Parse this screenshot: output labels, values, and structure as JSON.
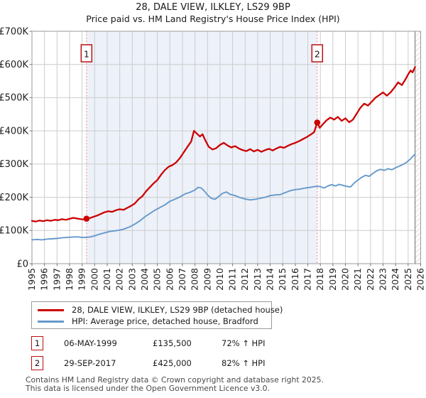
{
  "title": "28, DALE VIEW, ILKLEY, LS29 9BP",
  "subtitle": "Price paid vs. HM Land Registry's House Price Index (HPI)",
  "legend": [
    {
      "label": "28, DALE VIEW, ILKLEY, LS29 9BP (detached house)"
    },
    {
      "label": "HPI: Average price, detached house, Bradford"
    }
  ],
  "annotations": [
    {
      "num": "1",
      "date": "06-MAY-1999",
      "price": "£135,500",
      "hpi_change": "72% ↑ HPI"
    },
    {
      "num": "2",
      "date": "29-SEP-2017",
      "price": "£425,000",
      "hpi_change": "82% ↑ HPI"
    }
  ],
  "footer": {
    "line1": "Contains HM Land Registry data © Crown copyright and database right 2025.",
    "line2": "This data is licensed under the Open Government Licence v3.0."
  },
  "chart_data": {
    "type": "line",
    "title": "28, DALE VIEW, ILKLEY, LS29 9BP — Price paid vs. HPI",
    "grid": true,
    "legend_position": "bottom-left",
    "x_axis": {
      "min": 1995,
      "max": 2026,
      "ticks": [
        1995,
        1996,
        1997,
        1998,
        1999,
        2000,
        2001,
        2002,
        2003,
        2004,
        2005,
        2006,
        2007,
        2008,
        2009,
        2010,
        2011,
        2012,
        2013,
        2014,
        2015,
        2016,
        2017,
        2018,
        2019,
        2020,
        2021,
        2022,
        2023,
        2024,
        2025,
        2026
      ]
    },
    "y_axis": {
      "min": 0,
      "max": 700,
      "tick_step": 100,
      "tick_labels": [
        "£0",
        "£100K",
        "£200K",
        "£300K",
        "£400K",
        "£500K",
        "£600K",
        "£700K"
      ],
      "unit": "GBP (thousands)"
    },
    "colors": {
      "grid": "#cccccc",
      "border": "#9a9a9a",
      "shade": "#edf1f9",
      "dashed": "#f08080",
      "hatch": "#bbbbbb",
      "sale_marker": "#cc0000",
      "flag_border": "#bb1111"
    },
    "shaded_region": {
      "from": 1999.35,
      "to": 2017.75
    },
    "future_hatch_from": 2025.55,
    "sales": [
      {
        "label": "1",
        "date": "06-MAY-1999",
        "year": 1999.35,
        "price_k": 135.5,
        "vs_hpi": "72% ↑ HPI"
      },
      {
        "label": "2",
        "date": "29-SEP-2017",
        "year": 2017.75,
        "price_k": 425,
        "vs_hpi": "82% ↑ HPI"
      }
    ],
    "series": [
      {
        "name": "28, DALE VIEW, ILKLEY, LS29 9BP (detached house)",
        "data_name": "series-property-price-line",
        "color": "#cc0000",
        "width": 2.3,
        "points": [
          [
            1995.0,
            129
          ],
          [
            1995.3,
            127
          ],
          [
            1995.6,
            130
          ],
          [
            1995.9,
            128
          ],
          [
            1996.2,
            131
          ],
          [
            1996.5,
            129
          ],
          [
            1996.8,
            132
          ],
          [
            1997.1,
            131
          ],
          [
            1997.4,
            134
          ],
          [
            1997.7,
            132
          ],
          [
            1998.0,
            135
          ],
          [
            1998.3,
            138
          ],
          [
            1998.6,
            136
          ],
          [
            1998.9,
            134
          ],
          [
            1999.15,
            133
          ],
          [
            1999.35,
            135.5
          ],
          [
            1999.6,
            137
          ],
          [
            1999.9,
            141
          ],
          [
            2000.2,
            145
          ],
          [
            2000.5,
            150
          ],
          [
            2000.8,
            155
          ],
          [
            2001.1,
            158
          ],
          [
            2001.4,
            156
          ],
          [
            2001.7,
            161
          ],
          [
            2002.0,
            164
          ],
          [
            2002.3,
            162
          ],
          [
            2002.6,
            168
          ],
          [
            2002.9,
            174
          ],
          [
            2003.2,
            181
          ],
          [
            2003.5,
            194
          ],
          [
            2003.8,
            203
          ],
          [
            2004.1,
            218
          ],
          [
            2004.4,
            230
          ],
          [
            2004.7,
            242
          ],
          [
            2005.0,
            252
          ],
          [
            2005.3,
            268
          ],
          [
            2005.6,
            282
          ],
          [
            2005.9,
            292
          ],
          [
            2006.2,
            297
          ],
          [
            2006.5,
            305
          ],
          [
            2006.8,
            318
          ],
          [
            2007.1,
            335
          ],
          [
            2007.4,
            352
          ],
          [
            2007.7,
            368
          ],
          [
            2007.92,
            400
          ],
          [
            2008.15,
            392
          ],
          [
            2008.4,
            383
          ],
          [
            2008.6,
            390
          ],
          [
            2008.85,
            370
          ],
          [
            2009.1,
            352
          ],
          [
            2009.4,
            344
          ],
          [
            2009.7,
            348
          ],
          [
            2010.0,
            358
          ],
          [
            2010.3,
            364
          ],
          [
            2010.6,
            356
          ],
          [
            2010.9,
            350
          ],
          [
            2011.2,
            354
          ],
          [
            2011.5,
            347
          ],
          [
            2011.8,
            342
          ],
          [
            2012.1,
            339
          ],
          [
            2012.4,
            345
          ],
          [
            2012.7,
            338
          ],
          [
            2013.0,
            343
          ],
          [
            2013.3,
            337
          ],
          [
            2013.6,
            342
          ],
          [
            2013.9,
            346
          ],
          [
            2014.2,
            341
          ],
          [
            2014.5,
            347
          ],
          [
            2014.8,
            352
          ],
          [
            2015.1,
            349
          ],
          [
            2015.4,
            355
          ],
          [
            2015.7,
            360
          ],
          [
            2016.0,
            364
          ],
          [
            2016.3,
            369
          ],
          [
            2016.6,
            375
          ],
          [
            2016.9,
            381
          ],
          [
            2017.2,
            388
          ],
          [
            2017.5,
            396
          ],
          [
            2017.75,
            425
          ],
          [
            2017.95,
            409
          ],
          [
            2018.2,
            420
          ],
          [
            2018.5,
            432
          ],
          [
            2018.8,
            440
          ],
          [
            2019.1,
            434
          ],
          [
            2019.4,
            442
          ],
          [
            2019.7,
            430
          ],
          [
            2020.0,
            438
          ],
          [
            2020.3,
            426
          ],
          [
            2020.6,
            434
          ],
          [
            2020.9,
            452
          ],
          [
            2021.2,
            470
          ],
          [
            2021.5,
            482
          ],
          [
            2021.8,
            476
          ],
          [
            2022.1,
            488
          ],
          [
            2022.4,
            500
          ],
          [
            2022.7,
            508
          ],
          [
            2023.0,
            516
          ],
          [
            2023.3,
            506
          ],
          [
            2023.6,
            516
          ],
          [
            2023.9,
            530
          ],
          [
            2024.2,
            546
          ],
          [
            2024.5,
            538
          ],
          [
            2024.8,
            556
          ],
          [
            2025.0,
            570
          ],
          [
            2025.2,
            582
          ],
          [
            2025.35,
            576
          ],
          [
            2025.55,
            592
          ]
        ]
      },
      {
        "name": "HPI: Average price, detached house, Bradford",
        "data_name": "series-hpi-line",
        "color": "#6699cc",
        "width": 1.9,
        "points": [
          [
            1995.0,
            72
          ],
          [
            1995.4,
            73
          ],
          [
            1995.8,
            72
          ],
          [
            1996.2,
            74
          ],
          [
            1996.6,
            75
          ],
          [
            1997.0,
            76
          ],
          [
            1997.4,
            78
          ],
          [
            1997.8,
            79
          ],
          [
            1998.2,
            80
          ],
          [
            1998.6,
            81
          ],
          [
            1999.0,
            79
          ],
          [
            1999.35,
            79
          ],
          [
            1999.7,
            81
          ],
          [
            2000.0,
            84
          ],
          [
            2000.4,
            89
          ],
          [
            2000.8,
            93
          ],
          [
            2001.2,
            97
          ],
          [
            2001.6,
            99
          ],
          [
            2002.0,
            101
          ],
          [
            2002.4,
            105
          ],
          [
            2002.8,
            111
          ],
          [
            2003.2,
            119
          ],
          [
            2003.6,
            129
          ],
          [
            2004.0,
            141
          ],
          [
            2004.4,
            151
          ],
          [
            2004.8,
            161
          ],
          [
            2005.2,
            169
          ],
          [
            2005.6,
            177
          ],
          [
            2006.0,
            188
          ],
          [
            2006.4,
            194
          ],
          [
            2006.8,
            201
          ],
          [
            2007.2,
            210
          ],
          [
            2007.6,
            215
          ],
          [
            2008.0,
            222
          ],
          [
            2008.25,
            230
          ],
          [
            2008.5,
            228
          ],
          [
            2008.75,
            219
          ],
          [
            2009.0,
            207
          ],
          [
            2009.3,
            197
          ],
          [
            2009.6,
            194
          ],
          [
            2009.9,
            203
          ],
          [
            2010.2,
            212
          ],
          [
            2010.5,
            216
          ],
          [
            2010.8,
            209
          ],
          [
            2011.2,
            205
          ],
          [
            2011.6,
            199
          ],
          [
            2012.0,
            195
          ],
          [
            2012.4,
            192
          ],
          [
            2012.8,
            194
          ],
          [
            2013.2,
            197
          ],
          [
            2013.6,
            200
          ],
          [
            2014.0,
            205
          ],
          [
            2014.4,
            207
          ],
          [
            2014.8,
            208
          ],
          [
            2015.2,
            214
          ],
          [
            2015.6,
            220
          ],
          [
            2016.0,
            223
          ],
          [
            2016.4,
            225
          ],
          [
            2016.8,
            228
          ],
          [
            2017.2,
            230
          ],
          [
            2017.5,
            232
          ],
          [
            2017.75,
            233
          ],
          [
            2018.0,
            232
          ],
          [
            2018.3,
            228
          ],
          [
            2018.6,
            234
          ],
          [
            2018.9,
            238
          ],
          [
            2019.2,
            234
          ],
          [
            2019.5,
            239
          ],
          [
            2019.8,
            236
          ],
          [
            2020.1,
            233
          ],
          [
            2020.4,
            231
          ],
          [
            2020.7,
            243
          ],
          [
            2021.0,
            252
          ],
          [
            2021.3,
            260
          ],
          [
            2021.6,
            266
          ],
          [
            2021.9,
            263
          ],
          [
            2022.2,
            272
          ],
          [
            2022.5,
            280
          ],
          [
            2022.8,
            284
          ],
          [
            2023.1,
            281
          ],
          [
            2023.4,
            286
          ],
          [
            2023.7,
            283
          ],
          [
            2024.0,
            289
          ],
          [
            2024.3,
            294
          ],
          [
            2024.6,
            299
          ],
          [
            2024.9,
            306
          ],
          [
            2025.2,
            316
          ],
          [
            2025.4,
            324
          ],
          [
            2025.55,
            330
          ]
        ]
      }
    ]
  }
}
